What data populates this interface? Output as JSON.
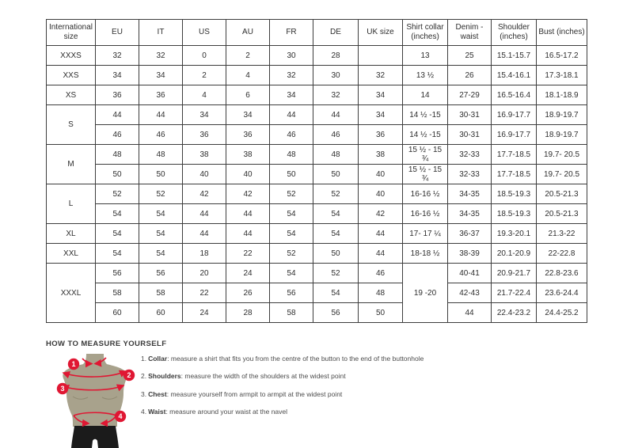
{
  "table": {
    "headers": [
      "International\nsize",
      "EU",
      "IT",
      "US",
      "AU",
      "FR",
      "DE",
      "UK size",
      "Shirt collar\n(inches)",
      "Denim -\nwaist",
      "Shoulder\n(inches)",
      "Bust (inches)"
    ],
    "rows": [
      [
        {
          "t": "XXXS",
          "head": true
        },
        "32",
        "32",
        "0",
        "2",
        "30",
        "28",
        "",
        "13",
        "25",
        "15.1-15.7",
        "16.5-17.2"
      ],
      [
        {
          "t": "XXS",
          "head": true
        },
        "34",
        "34",
        "2",
        "4",
        "32",
        "30",
        "32",
        "13 ½",
        "26",
        "15.4-16.1",
        "17.3-18.1"
      ],
      [
        {
          "t": "XS",
          "head": true
        },
        "36",
        "36",
        "4",
        "6",
        "34",
        "32",
        "34",
        "14",
        "27-29",
        "16.5-16.4",
        "18.1-18.9"
      ],
      [
        {
          "t": "S",
          "head": true,
          "rs": 2
        },
        "44",
        "44",
        "34",
        "34",
        "44",
        "44",
        "34",
        "14 ½ -15",
        "30-31",
        "16.9-17.7",
        "18.9-19.7"
      ],
      [
        "46",
        "46",
        "36",
        "36",
        "46",
        "46",
        "36",
        "14 ½ -15",
        "30-31",
        "16.9-17.7",
        "18.9-19.7"
      ],
      [
        {
          "t": "M",
          "head": true,
          "rs": 2
        },
        "48",
        "48",
        "38",
        "38",
        "48",
        "48",
        "38",
        "15 ½ - 15 ¾",
        "32-33",
        "17.7-18.5",
        "19.7- 20.5"
      ],
      [
        "50",
        "50",
        "40",
        "40",
        "50",
        "50",
        "40",
        "15 ½ - 15 ¾",
        "32-33",
        "17.7-18.5",
        "19.7- 20.5"
      ],
      [
        {
          "t": "L",
          "head": true,
          "rs": 2
        },
        "52",
        "52",
        "42",
        "42",
        "52",
        "52",
        "40",
        "16-16 ½",
        "34-35",
        "18.5-19.3",
        "20.5-21.3"
      ],
      [
        "54",
        "54",
        "44",
        "44",
        "54",
        "54",
        "42",
        "16-16 ½",
        "34-35",
        "18.5-19.3",
        "20.5-21.3"
      ],
      [
        {
          "t": "XL",
          "head": true
        },
        "54",
        "54",
        "44",
        "44",
        "54",
        "54",
        "44",
        "17- 17 ¼",
        "36-37",
        "19.3-20.1",
        "21.3-22"
      ],
      [
        {
          "t": "XXL",
          "head": true
        },
        "54",
        "54",
        "18",
        "22",
        "52",
        "50",
        "44",
        "18-18 ½",
        "38-39",
        "20.1-20.9",
        "22-22.8"
      ],
      [
        {
          "t": "XXXL",
          "head": true,
          "rs": 3
        },
        "56",
        "56",
        "20",
        "24",
        "54",
        "52",
        "46",
        {
          "t": "19 -20",
          "rs": 3
        },
        "40-41",
        "20.9-21.7",
        "22.8-23.6"
      ],
      [
        "58",
        "58",
        "22",
        "26",
        "56",
        "54",
        "48",
        "42-43",
        "21.7-22.4",
        "23.6-24.4"
      ],
      [
        "60",
        "60",
        "24",
        "28",
        "58",
        "56",
        "50",
        "44",
        "22.4-23.2",
        "24.4-25.2"
      ]
    ]
  },
  "measure": {
    "title": "HOW TO MEASURE YOURSELF",
    "steps": [
      {
        "num": "1.",
        "label": "Collar",
        "text": ": measure a shirt that fits you from the centre of the button to the end of the buttonhole"
      },
      {
        "num": "2.",
        "label": "Shoulders",
        "text": ": measure the width of the shoulders at the widest point"
      },
      {
        "num": "3.",
        "label": "Chest",
        "text": ": measure yourself from armpit to armpit at the widest point"
      },
      {
        "num": "4.",
        "label": "Waist",
        "text": ": measure around your waist at the navel"
      }
    ],
    "badges": [
      "1",
      "2",
      "3",
      "4"
    ]
  },
  "colors": {
    "accent_red": "#e01733",
    "body_olive": "#a8a28c",
    "body_contour": "#8f8972",
    "shorts_black": "#1b1b1b",
    "table_border": "#3d3d3d"
  }
}
